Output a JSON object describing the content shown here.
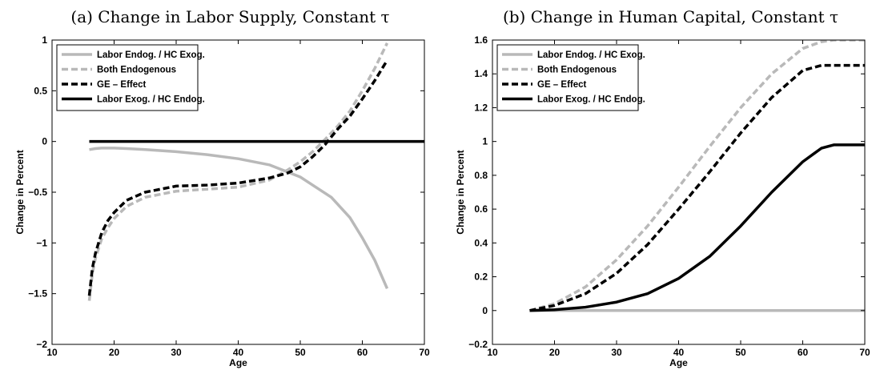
{
  "chart_data": [
    {
      "type": "line",
      "title": "(a) Change in Labor Supply, Constant τ",
      "xlabel": "Age",
      "ylabel": "Change in Percent",
      "xlim": [
        10,
        70
      ],
      "ylim": [
        -2,
        1
      ],
      "xticks": [
        10,
        20,
        30,
        40,
        50,
        60,
        70
      ],
      "yticks": [
        -2,
        -1.5,
        -1,
        -0.5,
        0,
        0.5,
        1
      ],
      "ytick_labels": [
        "−2",
        "−1.5",
        "−1",
        "−0.5",
        "0",
        "0.5",
        "1"
      ],
      "legend_position": "top-left",
      "grid": false,
      "series": [
        {
          "name": "Labor Endog. / HC Exog.",
          "color": "#b9b9b9",
          "dash": "solid",
          "x": [
            16,
            17,
            18,
            20,
            22,
            25,
            30,
            35,
            40,
            45,
            50,
            55,
            58,
            60,
            62,
            64
          ],
          "y": [
            -0.08,
            -0.07,
            -0.065,
            -0.065,
            -0.07,
            -0.08,
            -0.1,
            -0.13,
            -0.17,
            -0.23,
            -0.35,
            -0.55,
            -0.75,
            -0.95,
            -1.17,
            -1.45
          ]
        },
        {
          "name": "Both Endogenous",
          "color": "#b9b9b9",
          "dash": "dashed",
          "x": [
            16,
            16.5,
            17,
            18,
            19,
            20,
            22,
            25,
            30,
            35,
            40,
            45,
            48,
            50,
            52,
            54,
            56,
            58,
            60,
            62,
            64
          ],
          "y": [
            -1.57,
            -1.3,
            -1.15,
            -0.96,
            -0.85,
            -0.76,
            -0.64,
            -0.55,
            -0.49,
            -0.47,
            -0.45,
            -0.38,
            -0.28,
            -0.2,
            -0.1,
            0.02,
            0.15,
            0.3,
            0.5,
            0.72,
            0.97
          ]
        },
        {
          "name": "GE – Effect",
          "color": "#000000",
          "dash": "dashed",
          "x": [
            16,
            16.5,
            17,
            18,
            19,
            20,
            22,
            25,
            30,
            35,
            40,
            45,
            48,
            50,
            52,
            54,
            56,
            58,
            60,
            62,
            64
          ],
          "y": [
            -1.52,
            -1.25,
            -1.1,
            -0.9,
            -0.78,
            -0.7,
            -0.58,
            -0.5,
            -0.44,
            -0.43,
            -0.41,
            -0.36,
            -0.31,
            -0.25,
            -0.15,
            -0.03,
            0.12,
            0.25,
            0.42,
            0.6,
            0.8
          ]
        },
        {
          "name": "Labor Exog. / HC Endog.",
          "color": "#000000",
          "dash": "solid",
          "x": [
            16,
            70
          ],
          "y": [
            0,
            0
          ]
        }
      ]
    },
    {
      "type": "line",
      "title": "(b) Change in Human Capital, Constant τ",
      "xlabel": "Age",
      "ylabel": "Change in Percent",
      "xlim": [
        10,
        70
      ],
      "ylim": [
        -0.2,
        1.6
      ],
      "xticks": [
        10,
        20,
        30,
        40,
        50,
        60,
        70
      ],
      "yticks": [
        -0.2,
        0,
        0.2,
        0.4,
        0.6,
        0.8,
        1,
        1.2,
        1.4,
        1.6
      ],
      "ytick_labels": [
        "−0.2",
        "0",
        "0.2",
        "0.4",
        "0.6",
        "0.8",
        "1",
        "1.2",
        "1.4",
        "1.6"
      ],
      "legend_position": "top-left",
      "grid": false,
      "series": [
        {
          "name": "Labor Endog. / HC Exog.",
          "color": "#b9b9b9",
          "dash": "solid",
          "x": [
            16,
            70
          ],
          "y": [
            0,
            0
          ]
        },
        {
          "name": "Both Endogenous",
          "color": "#b9b9b9",
          "dash": "dashed",
          "x": [
            16,
            20,
            25,
            30,
            35,
            40,
            45,
            50,
            55,
            60,
            63,
            65,
            70
          ],
          "y": [
            0,
            0.04,
            0.14,
            0.3,
            0.5,
            0.73,
            0.97,
            1.2,
            1.4,
            1.55,
            1.59,
            1.6,
            1.6
          ]
        },
        {
          "name": "GE – Effect",
          "color": "#000000",
          "dash": "dashed",
          "x": [
            16,
            20,
            25,
            30,
            35,
            40,
            45,
            50,
            55,
            60,
            63,
            65,
            70
          ],
          "y": [
            0,
            0.03,
            0.1,
            0.22,
            0.39,
            0.6,
            0.82,
            1.05,
            1.26,
            1.42,
            1.45,
            1.45,
            1.45
          ]
        },
        {
          "name": "Labor Exog. / HC Endog.",
          "color": "#000000",
          "dash": "solid",
          "x": [
            16,
            20,
            25,
            30,
            35,
            40,
            45,
            50,
            55,
            60,
            63,
            65,
            70
          ],
          "y": [
            0,
            0.005,
            0.02,
            0.05,
            0.1,
            0.19,
            0.32,
            0.5,
            0.7,
            0.88,
            0.96,
            0.98,
            0.98
          ]
        }
      ]
    }
  ]
}
